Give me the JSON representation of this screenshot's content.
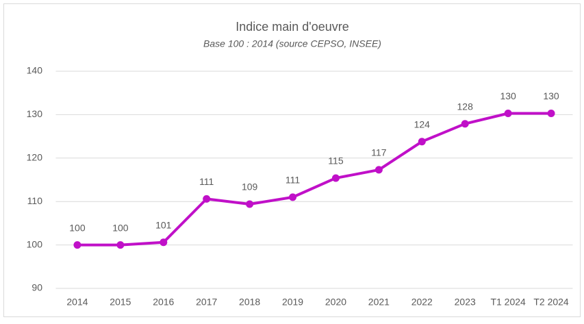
{
  "chart_data": {
    "type": "line",
    "title": "Indice main d'oeuvre",
    "subtitle": "Base 100 : 2014 (source CEPSO, INSEE)",
    "categories": [
      "2014",
      "2015",
      "2016",
      "2017",
      "2018",
      "2019",
      "2020",
      "2021",
      "2022",
      "2023",
      "T1 2024",
      "T2 2024"
    ],
    "series": [
      {
        "name": "Indice main d'oeuvre",
        "color": "#c010c8",
        "values": [
          100.0,
          100.0,
          100.6,
          110.6,
          109.4,
          111.0,
          115.4,
          117.3,
          123.8,
          127.9,
          130.3,
          130.3
        ],
        "value_labels": [
          "100",
          "100",
          "101",
          "111",
          "109",
          "111",
          "115",
          "117",
          "124",
          "128",
          "130",
          "130"
        ]
      }
    ],
    "ylim": [
      90,
      140
    ],
    "yticks": [
      90,
      100,
      110,
      120,
      130,
      140
    ],
    "grid": true
  }
}
